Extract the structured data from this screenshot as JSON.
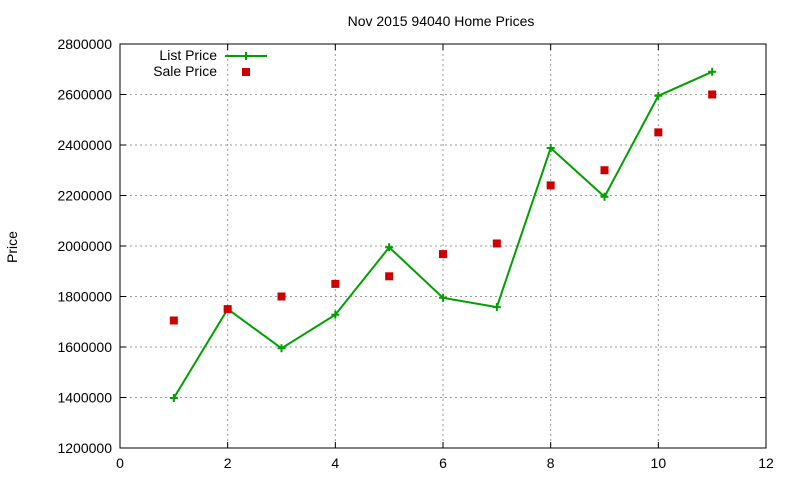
{
  "chart_data": {
    "type": "line",
    "title": "Nov 2015 94040 Home Prices",
    "xlabel": "",
    "ylabel": "Price",
    "xlim": [
      0,
      12
    ],
    "ylim": [
      1200000,
      2800000
    ],
    "x_ticks": [
      0,
      2,
      4,
      6,
      8,
      10,
      12
    ],
    "y_ticks": [
      1200000,
      1400000,
      1600000,
      1800000,
      2000000,
      2200000,
      2400000,
      2600000,
      2800000
    ],
    "grid": true,
    "legend_position": "top-left",
    "x": [
      1,
      2,
      3,
      4,
      5,
      6,
      7,
      8,
      9,
      10,
      11
    ],
    "series": [
      {
        "name": "List Price",
        "style": "line-with-plus-markers",
        "color": "#00a000",
        "values": [
          1398000,
          1750000,
          1595000,
          1728000,
          1995000,
          1795000,
          1758000,
          2388000,
          2195000,
          2595000,
          2690000
        ]
      },
      {
        "name": "Sale Price",
        "style": "square-markers",
        "color": "#cc0000",
        "values": [
          1705000,
          1750000,
          1800000,
          1850000,
          1880000,
          1968000,
          2010000,
          2240000,
          2300000,
          2450000,
          2600000
        ]
      }
    ]
  }
}
